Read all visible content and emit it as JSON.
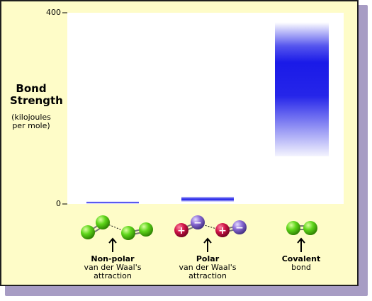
{
  "chart_data": {
    "type": "bar",
    "ylabel": "Bond Strength",
    "ylabel_units": "(kilojoules per mole)",
    "ylim": [
      0,
      400
    ],
    "yticks": [
      "0",
      "400"
    ],
    "categories": [
      {
        "title": "Non-polar",
        "subtitle": "van der Waal's attraction",
        "range": [
          1,
          5
        ]
      },
      {
        "title": "Polar",
        "subtitle": "van der Waal's attraction",
        "range": [
          5,
          15
        ]
      },
      {
        "title": "Covalent",
        "subtitle": "bond",
        "range": [
          100,
          380
        ]
      }
    ],
    "atom_signs": {
      "plus": "+",
      "minus": "−"
    },
    "colors": {
      "bar": "#1a1ae8",
      "background": "#fefcc8",
      "plot": "#ffffff",
      "atom_green": "#5ed51a",
      "atom_red": "#d11447",
      "atom_purple": "#8b6bd6"
    }
  }
}
